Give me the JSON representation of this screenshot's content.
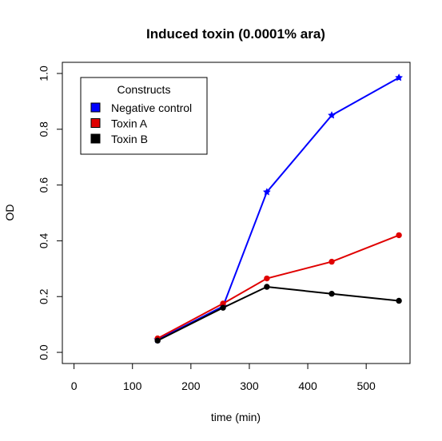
{
  "chart_data": {
    "type": "line",
    "title": "Induced toxin (0.0001% ara)",
    "xlabel": "time (min)",
    "ylabel": "OD",
    "xlim": [
      -20,
      575
    ],
    "ylim": [
      -0.04,
      1.04
    ],
    "x_ticks": [
      0,
      100,
      200,
      300,
      400,
      500
    ],
    "y_ticks": [
      0.0,
      0.2,
      0.4,
      0.6,
      0.8,
      1.0
    ],
    "x_tick_labels": [
      "0",
      "100",
      "200",
      "300",
      "400",
      "500"
    ],
    "y_tick_labels": [
      "0.0",
      "0.2",
      "0.4",
      "0.6",
      "0.8",
      "1.0"
    ],
    "grid": false,
    "legend": {
      "title": "Constructs",
      "placement": "top-left"
    },
    "x": [
      143,
      255,
      330,
      441,
      556
    ],
    "series": [
      {
        "name": "Negative control",
        "color": "#0000ff",
        "marker": "star",
        "values": [
          0.045,
          0.165,
          0.575,
          0.85,
          0.985
        ]
      },
      {
        "name": "Toxin A",
        "color": "#e00000",
        "marker": "circle",
        "values": [
          0.05,
          0.175,
          0.265,
          0.325,
          0.42
        ]
      },
      {
        "name": "Toxin B",
        "color": "#000000",
        "marker": "circle",
        "values": [
          0.042,
          0.16,
          0.235,
          0.21,
          0.185
        ]
      }
    ]
  }
}
